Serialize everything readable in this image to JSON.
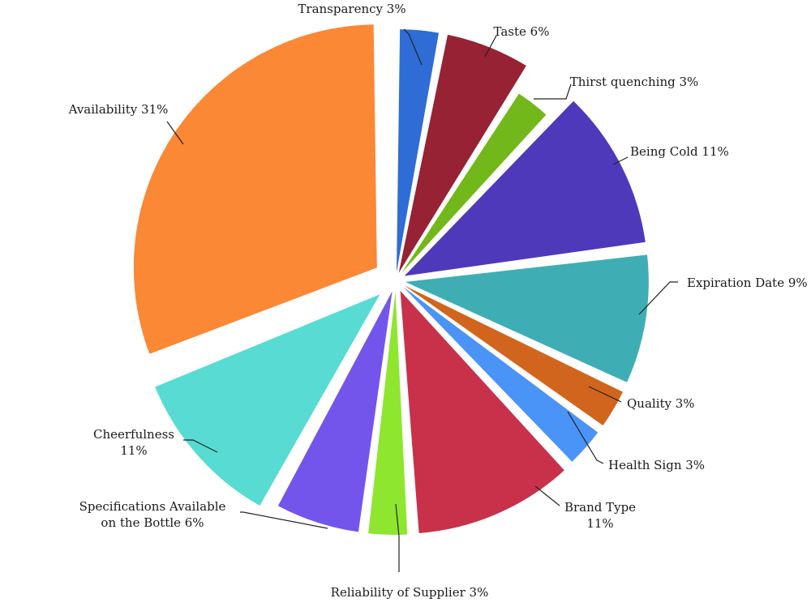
{
  "chart_data": {
    "type": "pie",
    "title": "",
    "slices": [
      {
        "label_lines": [
          "Transparency 3%"
        ],
        "value": 3,
        "color": "#2f6cd6"
      },
      {
        "label_lines": [
          "Taste 6%"
        ],
        "value": 6,
        "color": "#962233"
      },
      {
        "label_lines": [
          "Thirst quenching 3%"
        ],
        "value": 3,
        "color": "#72b81a"
      },
      {
        "label_lines": [
          "Being Cold 11%"
        ],
        "value": 11,
        "color": "#4e39bb"
      },
      {
        "label_lines": [
          "Expiration Date 9%"
        ],
        "value": 9,
        "color": "#3eaeb4"
      },
      {
        "label_lines": [
          "Quality 3%"
        ],
        "value": 3,
        "color": "#d2651d"
      },
      {
        "label_lines": [
          "Health Sign 3%"
        ],
        "value": 3,
        "color": "#4a93f7"
      },
      {
        "label_lines": [
          "Brand Type",
          "11%"
        ],
        "value": 11,
        "color": "#c9314b"
      },
      {
        "label_lines": [
          "Reliability of Supplier 3%"
        ],
        "value": 3,
        "color": "#8ee62f"
      },
      {
        "label_lines": [
          "Specifications Available",
          "on the Bottle 6%"
        ],
        "value": 6,
        "color": "#7455ec"
      },
      {
        "label_lines": [
          "Cheerfulness",
          "11%"
        ],
        "value": 11,
        "color": "#58dbd3"
      },
      {
        "label_lines": [
          "Availability 31%"
        ],
        "value": 31,
        "color": "#fb8835"
      }
    ]
  }
}
